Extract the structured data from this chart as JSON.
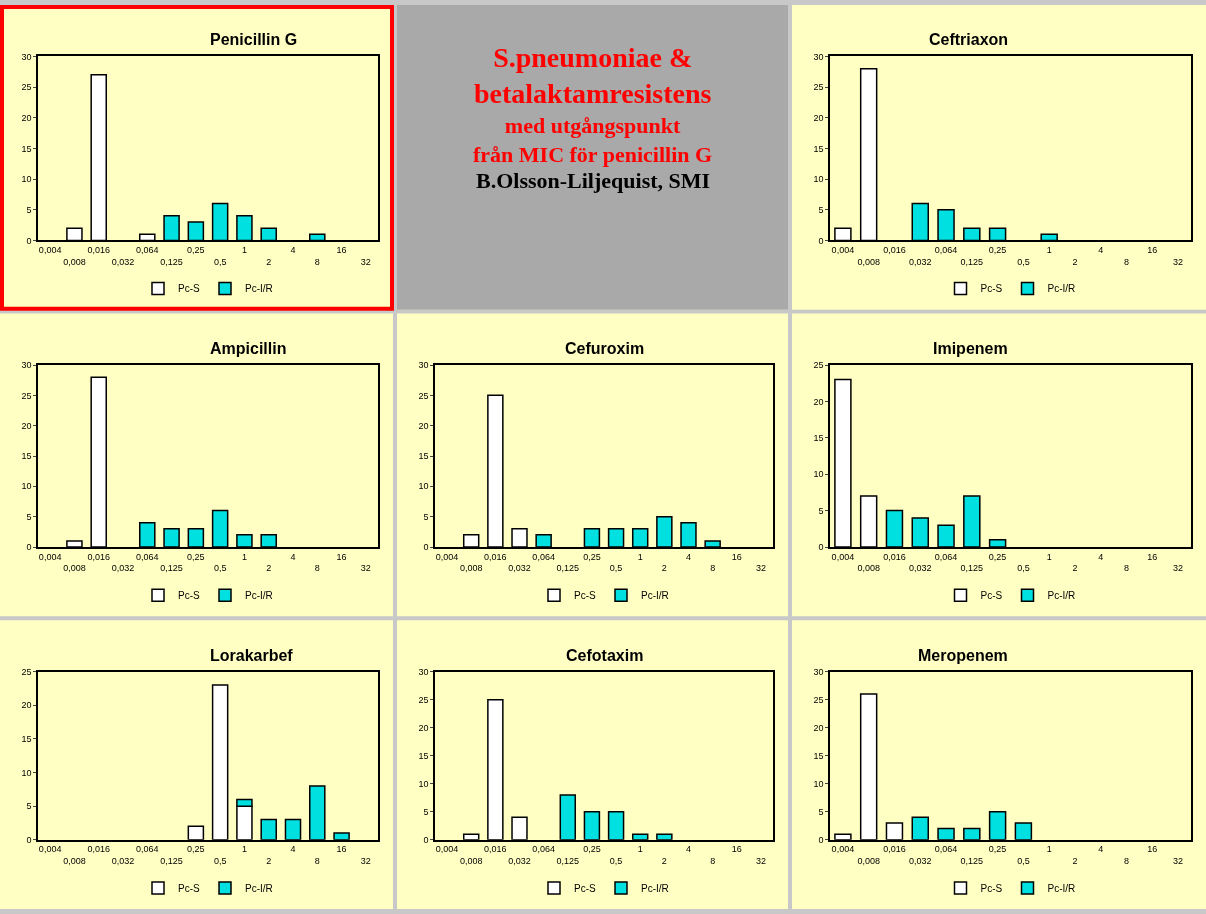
{
  "chart_data": [
    {
      "type": "bar",
      "title": "Penicillin G",
      "categories": [
        "0,004",
        "0,008",
        "0,016",
        "0,032",
        "0,064",
        "0,125",
        "0,25",
        "0,5",
        "1",
        "2",
        "4",
        "8",
        "16",
        "32"
      ],
      "stacked": true,
      "legend": "bottom",
      "ylim": [
        0,
        30
      ],
      "yticks": [
        0,
        5,
        10,
        15,
        20,
        25,
        30
      ],
      "series": [
        {
          "name": "Pc-S",
          "color": "#ffffff",
          "values": [
            null,
            2,
            27,
            null,
            1,
            null,
            null,
            null,
            null,
            null,
            null,
            null,
            null,
            null
          ]
        },
        {
          "name": "Pc-I/R",
          "color": "#00e0e0",
          "values": [
            null,
            null,
            null,
            null,
            null,
            4,
            3,
            6,
            4,
            2,
            null,
            1,
            null,
            null
          ]
        }
      ]
    },
    {
      "type": "other",
      "title": "S.pneumoniae &\nbetalaktamresistens",
      "subtitle": "med utgångspunkt\nfrån MIC för penicillin G",
      "annotations": [
        "B.Olsson-Liljequist, SMI"
      ]
    },
    {
      "type": "bar",
      "title": "Ceftriaxon",
      "categories": [
        "0,004",
        "0,008",
        "0,016",
        "0,032",
        "0,064",
        "0,125",
        "0,25",
        "0,5",
        "1",
        "2",
        "4",
        "8",
        "16",
        "32"
      ],
      "stacked": true,
      "legend": "bottom",
      "ylim": [
        0,
        30
      ],
      "yticks": [
        0,
        5,
        10,
        15,
        20,
        25,
        30
      ],
      "series": [
        {
          "name": "Pc-S",
          "color": "#ffffff",
          "values": [
            2,
            28,
            null,
            null,
            null,
            null,
            null,
            null,
            null,
            null,
            null,
            null,
            null,
            null
          ]
        },
        {
          "name": "Pc-I/R",
          "color": "#00e0e0",
          "values": [
            null,
            null,
            null,
            6,
            5,
            2,
            2,
            null,
            1,
            null,
            null,
            null,
            null,
            null
          ]
        }
      ]
    },
    {
      "type": "bar",
      "title": "Ampicillin",
      "categories": [
        "0,004",
        "0,008",
        "0,016",
        "0,032",
        "0,064",
        "0,125",
        "0,25",
        "0,5",
        "1",
        "2",
        "4",
        "8",
        "16",
        "32"
      ],
      "stacked": true,
      "legend": "bottom",
      "ylim": [
        0,
        30
      ],
      "yticks": [
        0,
        5,
        10,
        15,
        20,
        25,
        30
      ],
      "series": [
        {
          "name": "Pc-S",
          "color": "#ffffff",
          "values": [
            null,
            1,
            28,
            null,
            null,
            null,
            null,
            null,
            null,
            null,
            null,
            null,
            null,
            null
          ]
        },
        {
          "name": "Pc-I/R",
          "color": "#00e0e0",
          "values": [
            null,
            null,
            null,
            null,
            4,
            3,
            3,
            6,
            2,
            2,
            null,
            null,
            null,
            null
          ]
        }
      ]
    },
    {
      "type": "bar",
      "title": "Cefuroxim",
      "categories": [
        "0,004",
        "0,008",
        "0,016",
        "0,032",
        "0,064",
        "0,125",
        "0,25",
        "0,5",
        "1",
        "2",
        "4",
        "8",
        "16",
        "32"
      ],
      "stacked": true,
      "legend": "bottom",
      "ylim": [
        0,
        30
      ],
      "yticks": [
        0,
        5,
        10,
        15,
        20,
        25,
        30
      ],
      "series": [
        {
          "name": "Pc-S",
          "color": "#ffffff",
          "values": [
            null,
            2,
            25,
            3,
            null,
            null,
            null,
            null,
            null,
            null,
            null,
            null,
            null,
            null
          ]
        },
        {
          "name": "Pc-I/R",
          "color": "#00e0e0",
          "values": [
            null,
            null,
            null,
            null,
            2,
            null,
            3,
            3,
            3,
            5,
            4,
            1,
            null,
            null
          ]
        }
      ]
    },
    {
      "type": "bar",
      "title": "Imipenem",
      "categories": [
        "0,004",
        "0,008",
        "0,016",
        "0,032",
        "0,064",
        "0,125",
        "0,25",
        "0,5",
        "1",
        "2",
        "4",
        "8",
        "16",
        "32"
      ],
      "stacked": true,
      "legend": "bottom",
      "ylim": [
        0,
        25
      ],
      "yticks": [
        0,
        5,
        10,
        15,
        20,
        25
      ],
      "series": [
        {
          "name": "Pc-S",
          "color": "#ffffff",
          "values": [
            23,
            7,
            null,
            null,
            null,
            null,
            null,
            null,
            null,
            null,
            null,
            null,
            null,
            null
          ]
        },
        {
          "name": "Pc-I/R",
          "color": "#00e0e0",
          "values": [
            null,
            null,
            5,
            4,
            3,
            7,
            1,
            null,
            null,
            null,
            null,
            null,
            null,
            null
          ]
        }
      ]
    },
    {
      "type": "bar",
      "title": "Lorakarbef",
      "categories": [
        "0,004",
        "0,008",
        "0,016",
        "0,032",
        "0,064",
        "0,125",
        "0,25",
        "0,5",
        "1",
        "2",
        "4",
        "8",
        "16",
        "32"
      ],
      "stacked": true,
      "legend": "bottom",
      "ylim": [
        0,
        25
      ],
      "yticks": [
        0,
        5,
        10,
        15,
        20,
        25
      ],
      "series": [
        {
          "name": "Pc-S",
          "color": "#ffffff",
          "values": [
            null,
            null,
            null,
            null,
            null,
            null,
            2,
            23,
            5,
            null,
            null,
            null,
            null,
            null
          ]
        },
        {
          "name": "Pc-I/R",
          "color": "#00e0e0",
          "values": [
            null,
            null,
            null,
            null,
            null,
            null,
            null,
            null,
            1,
            3,
            3,
            8,
            1,
            null
          ]
        }
      ]
    },
    {
      "type": "bar",
      "title": "Cefotaxim",
      "categories": [
        "0,004",
        "0,008",
        "0,016",
        "0,032",
        "0,064",
        "0,125",
        "0,25",
        "0,5",
        "1",
        "2",
        "4",
        "8",
        "16",
        "32"
      ],
      "stacked": true,
      "legend": "bottom",
      "ylim": [
        0,
        30
      ],
      "yticks": [
        0,
        5,
        10,
        15,
        20,
        25,
        30
      ],
      "series": [
        {
          "name": "Pc-S",
          "color": "#ffffff",
          "values": [
            null,
            1,
            25,
            4,
            null,
            null,
            null,
            null,
            null,
            null,
            null,
            null,
            null,
            null
          ]
        },
        {
          "name": "Pc-I/R",
          "color": "#00e0e0",
          "values": [
            null,
            null,
            null,
            null,
            null,
            8,
            5,
            5,
            1,
            1,
            null,
            null,
            null,
            null
          ]
        }
      ]
    },
    {
      "type": "bar",
      "title": "Meropenem",
      "categories": [
        "0,004",
        "0,008",
        "0,016",
        "0,032",
        "0,064",
        "0,125",
        "0,25",
        "0,5",
        "1",
        "2",
        "4",
        "8",
        "16",
        "32"
      ],
      "stacked": true,
      "legend": "bottom",
      "ylim": [
        0,
        30
      ],
      "yticks": [
        0,
        5,
        10,
        15,
        20,
        25,
        30
      ],
      "series": [
        {
          "name": "Pc-S",
          "color": "#ffffff",
          "values": [
            1,
            26,
            3,
            null,
            null,
            null,
            null,
            null,
            null,
            null,
            null,
            null,
            null,
            null
          ]
        },
        {
          "name": "Pc-I/R",
          "color": "#00e0e0",
          "values": [
            null,
            null,
            null,
            4,
            2,
            2,
            5,
            3,
            null,
            null,
            null,
            null,
            null,
            null
          ]
        }
      ]
    }
  ]
}
